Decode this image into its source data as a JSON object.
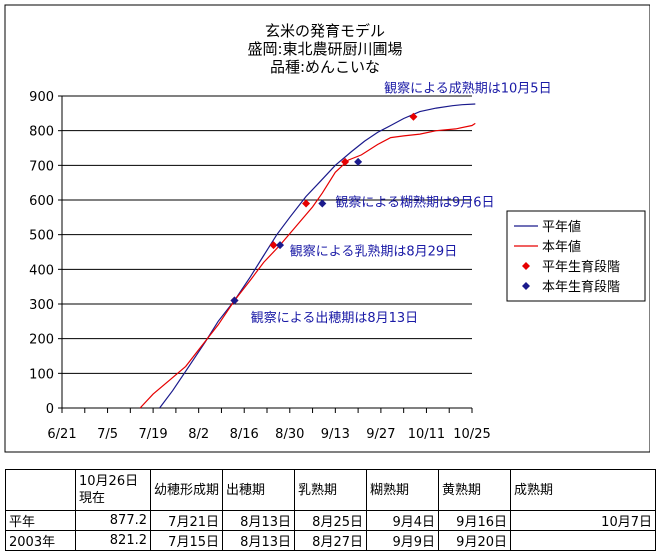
{
  "chart_data": {
    "type": "line",
    "title_lines": [
      "玄米の発育モデル",
      "盛岡:東北農研厨川圃場",
      "品種:めんこいな"
    ],
    "x_tick_labels": [
      "6/21",
      "7/5",
      "7/19",
      "8/2",
      "8/16",
      "8/30",
      "9/13",
      "9/27",
      "10/11",
      "10/25"
    ],
    "x_ticks": [
      "06-21",
      "07-05",
      "07-19",
      "08-02",
      "08-16",
      "08-30",
      "09-13",
      "09-27",
      "10-11",
      "10-25"
    ],
    "xlim": [
      "06-21",
      "10-25"
    ],
    "ylim": [
      0,
      900
    ],
    "y_ticks": [
      0,
      100,
      200,
      300,
      400,
      500,
      600,
      700,
      800,
      900
    ],
    "grid": "horizontal",
    "legend_position": "right",
    "legend": [
      "平年値",
      "本年値",
      "平年生育段階",
      "本年生育段階"
    ],
    "colors": {
      "heinen": "#1a1a8c",
      "honnen": "#e60000",
      "heinen_stage": "#e60000",
      "honnen_stage": "#1a1a8c"
    },
    "series": [
      {
        "name": "平年値",
        "style": "line",
        "color": "#1a1a8c",
        "x": [
          "07-21",
          "07-25",
          "07-30",
          "08-04",
          "08-08",
          "08-13",
          "08-18",
          "08-22",
          "08-26",
          "08-30",
          "09-04",
          "09-08",
          "09-13",
          "09-18",
          "09-22",
          "09-26",
          "09-30",
          "10-04",
          "10-09",
          "10-14",
          "10-19",
          "10-22",
          "10-26"
        ],
        "y": [
          0,
          50,
          120,
          190,
          250,
          310,
          380,
          440,
          500,
          550,
          610,
          650,
          700,
          740,
          770,
          795,
          815,
          835,
          855,
          865,
          872,
          875,
          877
        ]
      },
      {
        "name": "本年値",
        "style": "line",
        "color": "#e60000",
        "x": [
          "07-15",
          "07-19",
          "07-24",
          "07-29",
          "08-03",
          "08-08",
          "08-13",
          "08-18",
          "08-22",
          "08-27",
          "09-01",
          "09-06",
          "09-09",
          "09-13",
          "09-17",
          "09-21",
          "09-26",
          "09-30",
          "10-04",
          "10-09",
          "10-14",
          "10-20",
          "10-25",
          "10-26"
        ],
        "y": [
          0,
          40,
          80,
          120,
          180,
          240,
          310,
          370,
          420,
          470,
          525,
          580,
          620,
          680,
          715,
          730,
          760,
          780,
          785,
          790,
          800,
          805,
          815,
          821
        ]
      },
      {
        "name": "平年生育段階",
        "style": "marker",
        "color": "#e60000",
        "x": [
          "08-13",
          "08-25",
          "09-04",
          "09-16",
          "10-07"
        ],
        "y": [
          310,
          470,
          590,
          710,
          840
        ]
      },
      {
        "name": "本年生育段階",
        "style": "marker",
        "color": "#1a1a8c",
        "x": [
          "08-13",
          "08-27",
          "09-09",
          "09-20"
        ],
        "y": [
          310,
          470,
          590,
          710
        ]
      }
    ],
    "annotations": [
      {
        "text": "観察による成熟期は10月5日",
        "x": "09-28",
        "y": 925
      },
      {
        "text": "観察による糊熟期は9月6日",
        "x": "09-13",
        "y": 595
      },
      {
        "text": "観察による乳熟期は8月29日",
        "x": "08-30",
        "y": 455
      },
      {
        "text": "観察による出穂期は8月13日",
        "x": "08-18",
        "y": 262
      }
    ]
  },
  "table": {
    "header": [
      "",
      "10月26日現在",
      "幼穂形成期",
      "出穂期",
      "乳熟期",
      "糊熟期",
      "黄熟期",
      "成熟期"
    ],
    "rows": [
      [
        "平年",
        "877.2",
        "7月21日",
        "8月13日",
        "8月25日",
        "9月4日",
        "9月16日",
        "10月7日"
      ],
      [
        "2003年",
        "821.2",
        "7月15日",
        "8月13日",
        "8月27日",
        "9月9日",
        "9月20日",
        ""
      ]
    ]
  }
}
